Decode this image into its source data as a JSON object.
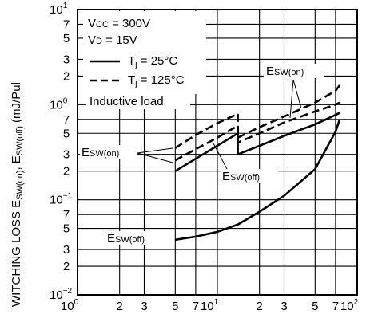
{
  "chart_data": {
    "type": "line",
    "title": "",
    "ylabel": {
      "main": "WITCHING LOSS  E",
      "s1": "SW(on)",
      "mid": ", E",
      "s2": "SW(off)",
      "unit": " (mJ/Pul"
    },
    "x_scale": "log",
    "y_scale": "log",
    "xlim": [
      1,
      100
    ],
    "ylim": [
      0.01,
      10
    ],
    "grid": true,
    "x_ticks": [
      {
        "v": 1,
        "base": "10",
        "exp": "0"
      },
      {
        "v": 2,
        "base": "2"
      },
      {
        "v": 3,
        "base": "3"
      },
      {
        "v": 5,
        "base": "5"
      },
      {
        "v": 7,
        "base": "7"
      },
      {
        "v": 10,
        "base": "10",
        "exp": "1"
      },
      {
        "v": 20,
        "base": "2"
      },
      {
        "v": 30,
        "base": "3"
      },
      {
        "v": 50,
        "base": "5"
      },
      {
        "v": 70,
        "base": "7"
      },
      {
        "v": 100,
        "base": "10",
        "exp": "2"
      }
    ],
    "y_ticks": [
      {
        "v": 10,
        "base": "10",
        "exp": "1"
      },
      {
        "v": 7,
        "base": "7"
      },
      {
        "v": 5,
        "base": "5"
      },
      {
        "v": 3,
        "base": "3"
      },
      {
        "v": 2,
        "base": "2"
      },
      {
        "v": 1,
        "base": "10",
        "exp": "0"
      },
      {
        "v": 0.7,
        "base": "7"
      },
      {
        "v": 0.5,
        "base": "5"
      },
      {
        "v": 0.3,
        "base": "3"
      },
      {
        "v": 0.2,
        "base": "2"
      },
      {
        "v": 0.1,
        "base": "10",
        "exp": "−1"
      },
      {
        "v": 0.07,
        "base": "7"
      },
      {
        "v": 0.05,
        "base": "5"
      },
      {
        "v": 0.03,
        "base": "3"
      },
      {
        "v": 0.02,
        "base": "2"
      },
      {
        "v": 0.01,
        "base": "10",
        "exp": "−2"
      }
    ],
    "conditions": {
      "vcc": {
        "a": "V",
        "sub": "CC",
        "b": " = 300V"
      },
      "vd": {
        "a": "V",
        "sub": "D",
        "b": " = 15V"
      },
      "load": "Inductive load"
    },
    "legend": {
      "placement": "top-left",
      "entries": [
        {
          "style": "solid",
          "a": "T",
          "sub": "j",
          "b": " = 25°C"
        },
        {
          "style": "dashed",
          "a": "T",
          "sub": "j",
          "b": " = 125°C"
        }
      ]
    },
    "annotations": {
      "esw_on_right": {
        "a": "E",
        "sub": "SW(on)"
      },
      "esw_on_left": {
        "a": "E",
        "sub": "SW(on)"
      },
      "esw_off_mid": {
        "a": "E",
        "sub": "SW(off)"
      },
      "esw_off_low": {
        "a": "E",
        "sub": "SW(off)"
      }
    },
    "series": [
      {
        "style": "solid",
        "x": [
          5,
          7,
          10,
          14
        ],
        "y": [
          0.2,
          0.27,
          0.37,
          0.5
        ]
      },
      {
        "style": "solid",
        "x": [
          14,
          14,
          20,
          30,
          50,
          70,
          75
        ],
        "y": [
          0.5,
          0.3,
          0.37,
          0.47,
          0.62,
          0.78,
          0.82
        ]
      },
      {
        "style": "solid",
        "x": [
          5,
          7,
          10,
          14,
          20,
          30,
          50,
          70,
          75
        ],
        "y": [
          0.038,
          0.041,
          0.046,
          0.055,
          0.075,
          0.11,
          0.21,
          0.52,
          0.7
        ]
      },
      {
        "style": "dashed",
        "x": [
          5,
          7,
          10,
          14
        ],
        "y": [
          0.35,
          0.48,
          0.64,
          0.8
        ]
      },
      {
        "style": "dashed",
        "x": [
          14,
          14,
          20,
          30,
          50,
          70,
          75
        ],
        "y": [
          0.8,
          0.45,
          0.58,
          0.75,
          1.05,
          1.4,
          1.6
        ]
      },
      {
        "style": "dashed",
        "x": [
          5,
          7,
          10,
          14,
          14,
          20,
          30,
          50,
          70,
          75
        ],
        "y": [
          0.26,
          0.34,
          0.45,
          0.6,
          0.4,
          0.5,
          0.65,
          0.85,
          1.0,
          1.05
        ]
      }
    ]
  }
}
